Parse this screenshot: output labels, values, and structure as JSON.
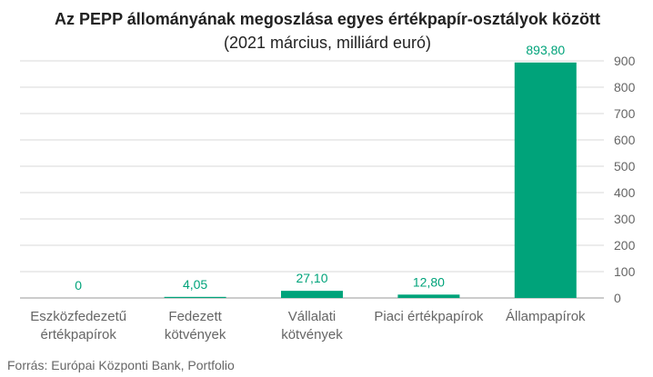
{
  "chart_data": {
    "type": "bar",
    "title": "Az PEPP állományának megoszlása egyes értékpapír-osztályok között",
    "subtitle": "(2021 március, milliárd euró)",
    "categories": [
      [
        "Eszközfedezetű",
        "értékpapírok"
      ],
      [
        "Fedezett",
        "kötvények"
      ],
      [
        "Vállalati",
        "kötvények"
      ],
      [
        "Piaci értékpapírok"
      ],
      [
        "Állampapírok"
      ]
    ],
    "values": [
      0,
      4.05,
      27.1,
      12.8,
      893.8
    ],
    "value_labels": [
      "0",
      "4,05",
      "27,10",
      "12,80",
      "893,80"
    ],
    "ylim": [
      0,
      900
    ],
    "yticks": [
      "0",
      "100",
      "200",
      "300",
      "400",
      "500",
      "600",
      "700",
      "800",
      "900"
    ],
    "ytick_values": [
      0,
      100,
      200,
      300,
      400,
      500,
      600,
      700,
      800,
      900
    ],
    "grid": true,
    "bar_color": "#00a37a",
    "label_color": "#00a37a"
  },
  "source": "Forrás: Európai Központi Bank, Portfolio"
}
